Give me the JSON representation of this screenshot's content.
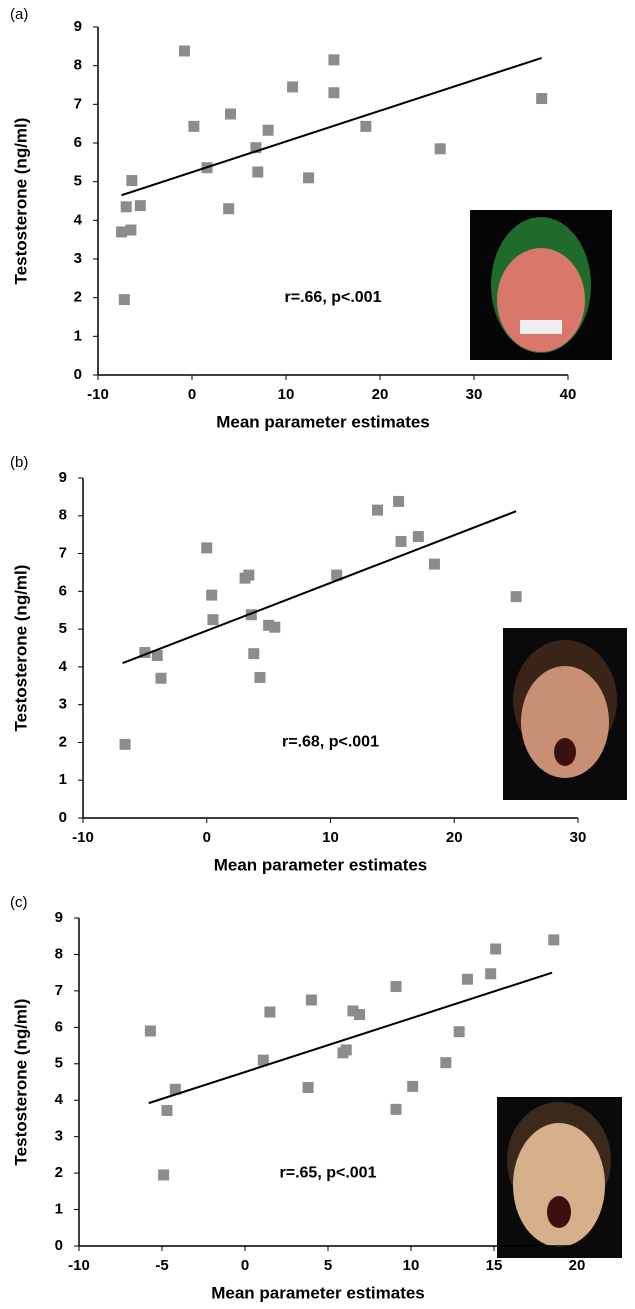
{
  "chart_data": [
    {
      "type": "scatter",
      "panel_label": "(a)",
      "xlabel": "Mean parameter estimates",
      "ylabel": "Testosterone (ng/ml)",
      "annotation": "r=.66, p<.001",
      "color": "#8c8c8c",
      "line_color": "#000000",
      "xlim": [
        -10,
        40
      ],
      "xticks": [
        -10,
        0,
        10,
        20,
        30,
        40
      ],
      "ylim": [
        0,
        9
      ],
      "yticks": [
        0,
        1,
        2,
        3,
        4,
        5,
        6,
        7,
        8,
        9
      ],
      "x": [
        -7.5,
        -7,
        -6.5,
        -6.4,
        -5.5,
        -7.2,
        -0.8,
        0.2,
        1.6,
        4.1,
        3.9,
        6.8,
        7.0,
        8.1,
        10.7,
        12.4,
        15.1,
        15.1,
        18.5,
        26.4,
        37.2
      ],
      "values": [
        3.7,
        4.35,
        3.75,
        5.03,
        4.38,
        1.95,
        8.38,
        6.43,
        5.36,
        6.75,
        4.3,
        5.88,
        5.25,
        6.33,
        7.45,
        5.1,
        7.3,
        8.15,
        6.43,
        5.85,
        7.15
      ],
      "trend_line": {
        "x": [
          -7.5,
          37.2
        ],
        "y": [
          4.65,
          8.2
        ]
      }
    },
    {
      "type": "scatter",
      "panel_label": "(b)",
      "xlabel": "Mean parameter estimates",
      "ylabel": "Testosterone (ng/ml)",
      "annotation": "r=.68, p<.001",
      "color": "#8c8c8c",
      "line_color": "#000000",
      "xlim": [
        -10,
        30
      ],
      "xticks": [
        -10,
        0,
        10,
        20,
        30
      ],
      "ylim": [
        0,
        9
      ],
      "yticks": [
        0,
        1,
        2,
        3,
        4,
        5,
        6,
        7,
        8,
        9
      ],
      "x": [
        -6.6,
        -5.0,
        -4.0,
        -3.7,
        0,
        0.4,
        0.5,
        3.1,
        3.4,
        3.6,
        3.8,
        4.3,
        5,
        5.5,
        10.5,
        13.8,
        15.5,
        15.7,
        17.1,
        18.4,
        25
      ],
      "values": [
        1.95,
        4.38,
        4.3,
        3.7,
        7.15,
        5.9,
        5.25,
        6.35,
        6.43,
        5.38,
        4.35,
        3.72,
        5.1,
        5.05,
        6.43,
        8.15,
        8.38,
        7.32,
        7.45,
        6.72,
        5.86
      ],
      "trend_line": {
        "x": [
          -6.8,
          25
        ],
        "y": [
          4.1,
          8.12
        ]
      }
    },
    {
      "type": "scatter",
      "panel_label": "(c)",
      "xlabel": "Mean parameter estimates",
      "ylabel": "Testosterone (ng/ml)",
      "annotation": "r=.65, p<.001",
      "color": "#8c8c8c",
      "line_color": "#000000",
      "xlim": [
        -10,
        20
      ],
      "xticks": [
        -10,
        -5,
        0,
        5,
        10,
        15,
        20
      ],
      "ylim": [
        0,
        9
      ],
      "yticks": [
        0,
        1,
        2,
        3,
        4,
        5,
        6,
        7,
        8,
        9
      ],
      "x": [
        -5.7,
        -4.2,
        -4.7,
        -4.9,
        1.1,
        1.5,
        3.8,
        4.0,
        5.9,
        6.1,
        6.5,
        6.9,
        9.1,
        9.1,
        10.1,
        12.1,
        12.9,
        13.4,
        14.8,
        15.1,
        18.6
      ],
      "values": [
        5.9,
        4.3,
        3.72,
        1.95,
        5.1,
        6.42,
        4.35,
        6.75,
        5.3,
        5.38,
        6.45,
        6.35,
        3.75,
        7.12,
        4.38,
        5.03,
        5.88,
        7.32,
        7.47,
        8.15,
        8.4
      ],
      "trend_line": {
        "x": [
          -5.8,
          18.5
        ],
        "y": [
          3.92,
          7.5
        ]
      }
    }
  ]
}
